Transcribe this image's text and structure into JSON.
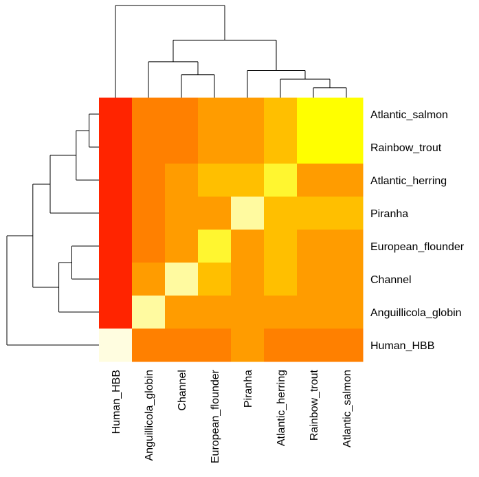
{
  "chart_data": {
    "type": "heatmap",
    "title": "",
    "xlabel": "",
    "ylabel": "",
    "rows": [
      "Atlantic_salmon",
      "Rainbow_trout",
      "Atlantic_herring",
      "Piranha",
      "European_flounder",
      "Channel",
      "Anguillicola_globin",
      "Human_HBB"
    ],
    "columns": [
      "Human_HBB",
      "Anguillicola_globin",
      "Channel",
      "European_flounder",
      "Piranha",
      "Atlantic_herring",
      "Rainbow_trout",
      "Atlantic_salmon"
    ],
    "colors": [
      "#ff2400",
      "#ff8000",
      "#ff9c00",
      "#ffbf00",
      "#fff630",
      "#fffaa0",
      "#fffde0",
      "#ffff00"
    ],
    "values": [
      [
        0,
        1,
        1,
        2,
        2,
        3,
        7,
        7
      ],
      [
        0,
        1,
        1,
        2,
        2,
        3,
        7,
        7
      ],
      [
        0,
        1,
        2,
        3,
        3,
        4,
        2,
        2
      ],
      [
        0,
        1,
        2,
        2,
        5,
        3,
        3,
        3
      ],
      [
        0,
        1,
        2,
        4,
        2,
        3,
        2,
        2
      ],
      [
        0,
        2,
        5,
        3,
        2,
        3,
        2,
        2
      ],
      [
        0,
        5,
        2,
        2,
        2,
        2,
        2,
        2
      ],
      [
        6,
        1,
        1,
        1,
        2,
        1,
        1,
        1
      ]
    ],
    "color_scale": "heat colors (red = low, yellow/white = high)",
    "row_dendrogram": true,
    "column_dendrogram": true
  }
}
